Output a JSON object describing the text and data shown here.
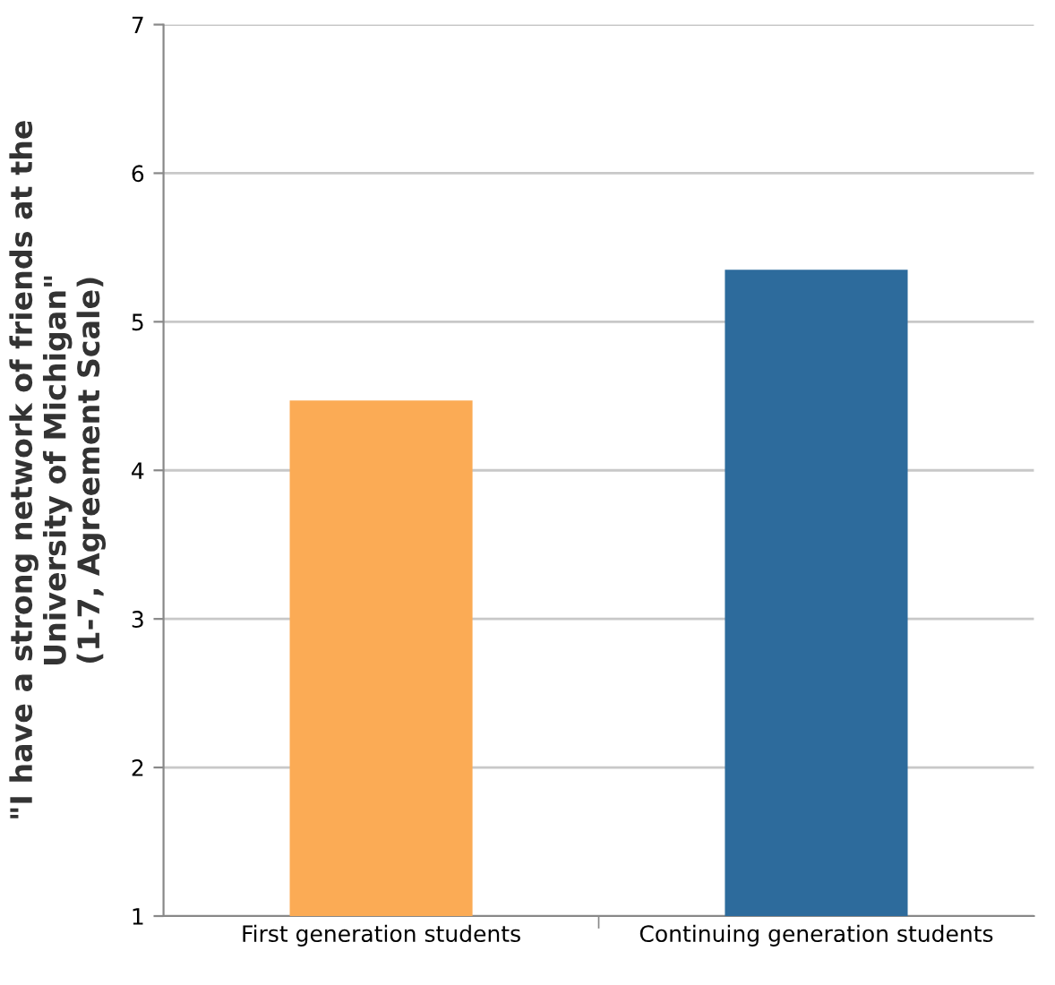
{
  "chart_data": {
    "type": "bar",
    "ylabel": "\"I have a strong network of friends at the\nUniversity of Michigan\"\n(1-7, Agreement Scale)",
    "categories": [
      "First generation students",
      "Continuing generation students"
    ],
    "values": [
      4.47,
      5.35
    ],
    "colors": [
      "#fbab55",
      "#2d6b9c"
    ],
    "ylim": [
      1,
      7
    ],
    "yticks": [
      1,
      2,
      3,
      4,
      5,
      6,
      7
    ],
    "grid": "y"
  }
}
